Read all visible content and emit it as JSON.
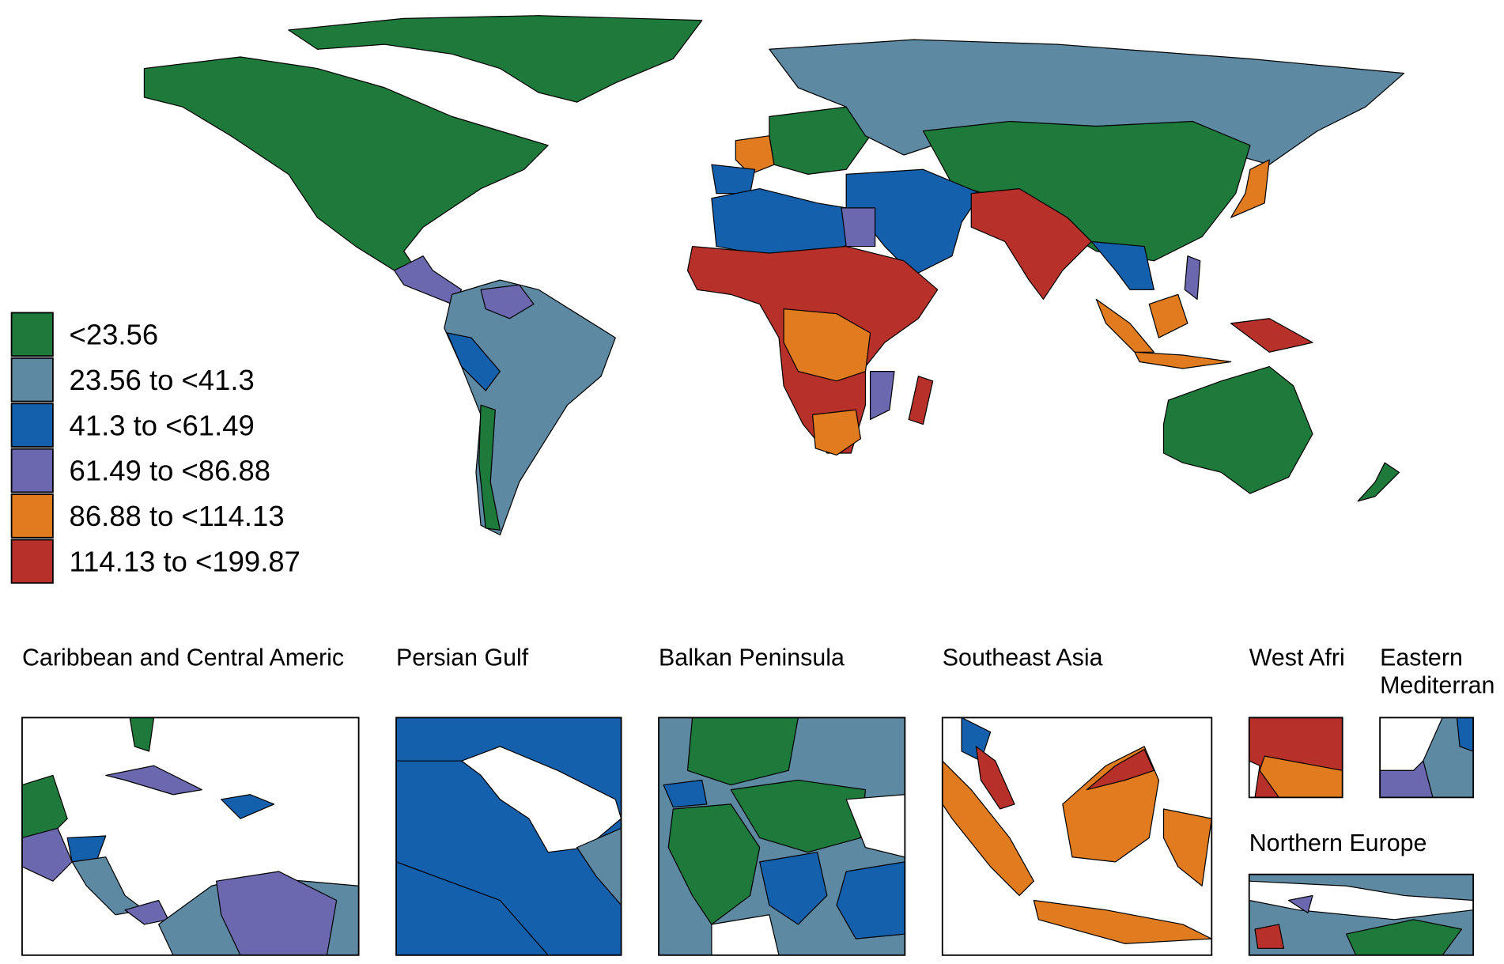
{
  "legend": {
    "items": [
      {
        "label": "<23.56",
        "color": "#1e7a3a"
      },
      {
        "label": "23.56 to <41.3",
        "color": "#5e89a3"
      },
      {
        "label": "41.3 to <61.49",
        "color": "#1460ad"
      },
      {
        "label": "61.49 to <86.88",
        "color": "#6b68b0"
      },
      {
        "label": "86.88 to <114.13",
        "color": "#e07b1f"
      },
      {
        "label": "114.13 to <199.87",
        "color": "#b8302a"
      }
    ]
  },
  "insets": [
    {
      "title": "Caribbean and Central Americ"
    },
    {
      "title": "Persian Gulf"
    },
    {
      "title": "Balkan Peninsula"
    },
    {
      "title": "Southeast Asia"
    },
    {
      "title": "West Afri"
    },
    {
      "title_lines": [
        "Eastern",
        "Mediterran"
      ]
    },
    {
      "title": "Northern Europe"
    }
  ]
}
